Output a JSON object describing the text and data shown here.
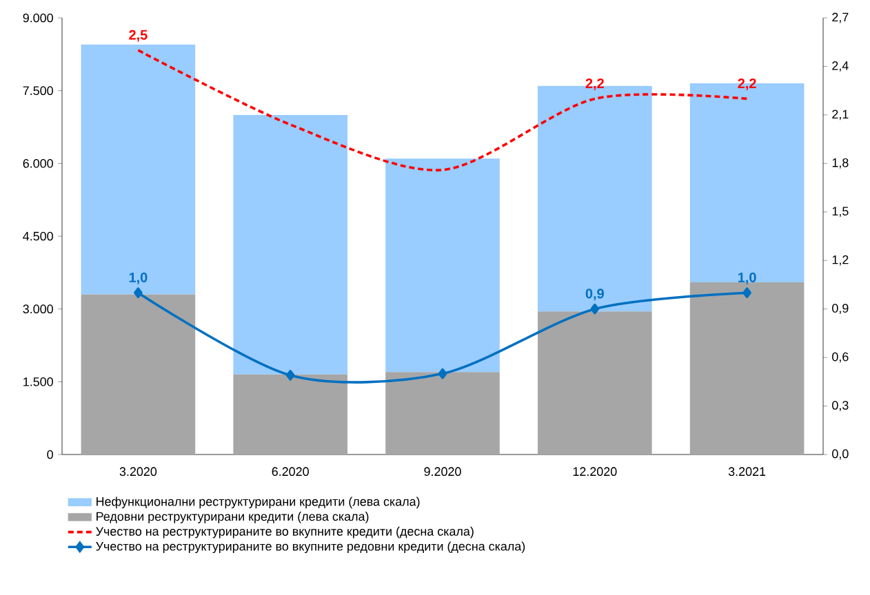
{
  "chart_data": {
    "type": "bar",
    "stacked": true,
    "categories": [
      "3.2020",
      "6.2020",
      "9.2020",
      "12.2020",
      "3.2021"
    ],
    "series": [
      {
        "name": "Редовни реструктурирани кредити (лева скала)",
        "color": "#a6a6a6",
        "values": [
          3300,
          1650,
          1700,
          2950,
          3550
        ]
      },
      {
        "name": "Нефункционални реструктурирани кредити (лева скала)",
        "color": "#99ccff",
        "values": [
          5150,
          5350,
          4400,
          4650,
          4100
        ]
      },
      {
        "name": "Учество на реструктурираните во вкупните кредити (десна скала)",
        "type": "line",
        "axis": "y2",
        "color": "#ff0000",
        "line_style": "dashed",
        "marker": "none",
        "values": [
          2.5,
          2.04,
          1.76,
          2.2,
          2.2
        ],
        "value_labels": [
          "2,5",
          null,
          null,
          "2,2",
          "2,2"
        ]
      },
      {
        "name": "Учество на реструктурираните во вкупните редовни кредити (десна скала)",
        "type": "line",
        "axis": "y2",
        "color": "#0070c0",
        "line_style": "solid",
        "marker": "diamond",
        "values": [
          1.0,
          0.49,
          0.5,
          0.9,
          1.0
        ],
        "value_labels": [
          "1,0",
          null,
          null,
          "0,9",
          "1,0"
        ]
      }
    ],
    "ylim": [
      0,
      9000
    ],
    "yticks": [
      0,
      {
        "value": 1500,
        "label": "1.500"
      },
      {
        "value": 3000,
        "label": "3.000"
      },
      {
        "value": 4500,
        "label": "4.500"
      },
      {
        "value": 6000,
        "label": "6.000"
      },
      {
        "value": 7500,
        "label": "7.500"
      },
      {
        "value": 9000,
        "label": "9.000"
      }
    ],
    "y2lim": [
      0,
      2.7
    ],
    "y2ticks": [
      {
        "value": 0,
        "label": "0,0"
      },
      {
        "value": 0.3,
        "label": "0,3"
      },
      {
        "value": 0.6,
        "label": "0,6"
      },
      {
        "value": 0.9,
        "label": "0,9"
      },
      {
        "value": 1.2,
        "label": "1,2"
      },
      {
        "value": 1.5,
        "label": "1,5"
      },
      {
        "value": 1.8,
        "label": "1,8"
      },
      {
        "value": 2.1,
        "label": "2,1"
      },
      {
        "value": 2.4,
        "label": "2,4"
      },
      {
        "value": 2.7,
        "label": "2,7"
      }
    ],
    "legend": "bottom",
    "grid": false
  }
}
